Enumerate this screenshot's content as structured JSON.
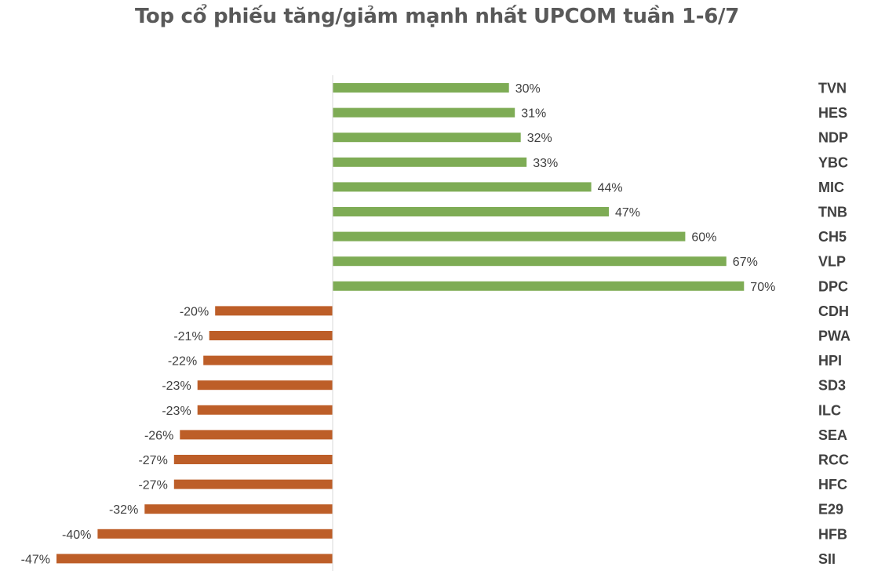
{
  "title": "Top cổ phiếu tăng/giảm mạnh nhất UPCOM tuần 1-6/7",
  "colors": {
    "positive": "#7EAC55",
    "negative": "#BD5E28",
    "axis": "#D9D9D9",
    "text": "#404040",
    "title": "#595959"
  },
  "chart_data": {
    "type": "bar",
    "orientation": "horizontal",
    "title": "Top cổ phiếu tăng/giảm mạnh nhất UPCOM tuần 1-6/7",
    "xlabel": "",
    "ylabel": "",
    "grid": false,
    "legend": "none",
    "category_axis_position": "right",
    "categories": [
      "TVN",
      "HES",
      "NDP",
      "YBC",
      "MIC",
      "TNB",
      "CH5",
      "VLP",
      "DPC",
      "CDH",
      "PWA",
      "HPI",
      "SD3",
      "ILC",
      "SEA",
      "RCC",
      "HFC",
      "E29",
      "HFB",
      "SII"
    ],
    "values": [
      30,
      31,
      32,
      33,
      44,
      47,
      60,
      67,
      70,
      -20,
      -21,
      -22,
      -23,
      -23,
      -26,
      -27,
      -27,
      -32,
      -40,
      -47
    ],
    "value_labels": [
      "30%",
      "31%",
      "32%",
      "33%",
      "44%",
      "47%",
      "60%",
      "67%",
      "70%",
      "-20%",
      "-21%",
      "-22%",
      "-23%",
      "-23%",
      "-26%",
      "-27%",
      "-27%",
      "-32%",
      "-40%",
      "-47%"
    ],
    "unit": "%",
    "xlim": [
      -47,
      70
    ]
  }
}
